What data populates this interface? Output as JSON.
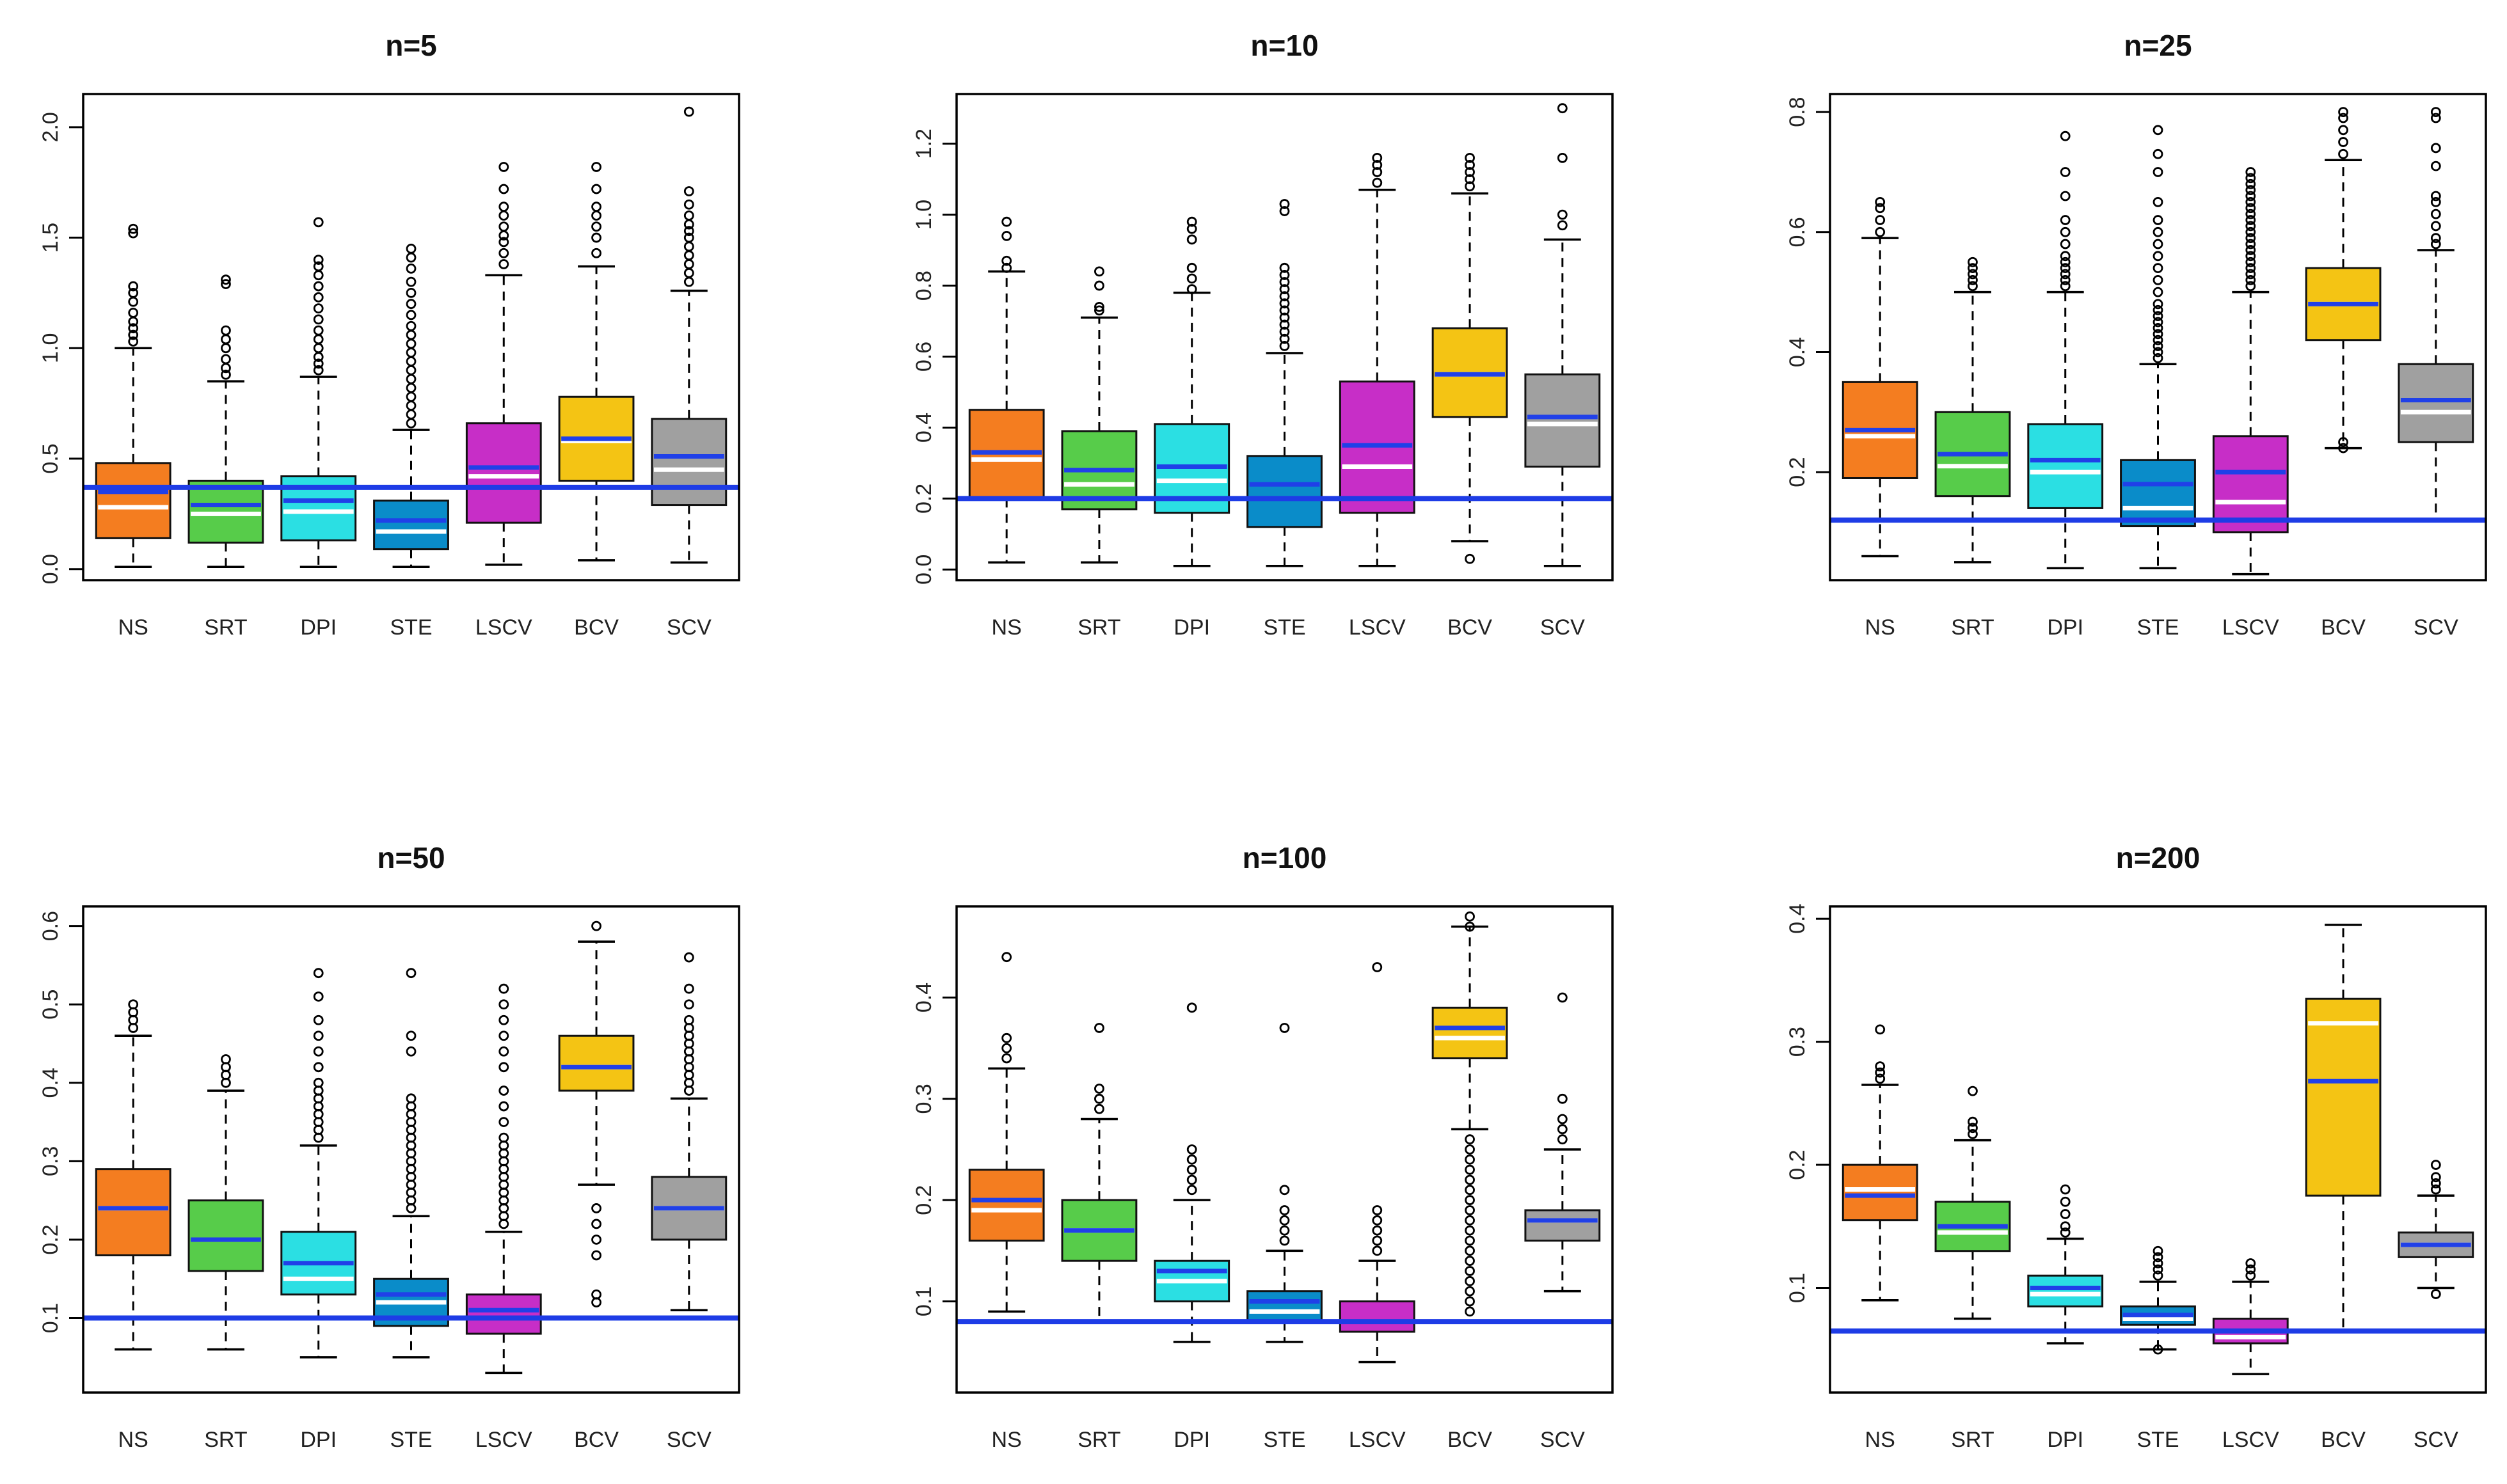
{
  "chart_data": [
    {
      "type": "boxplot",
      "title": "n=5",
      "categories": [
        "NS",
        "SRT",
        "DPI",
        "STE",
        "LSCV",
        "BCV",
        "SCV"
      ],
      "colors": [
        "#F47D20",
        "#57CC4A",
        "#2BDFE3",
        "#0A8CC9",
        "#C72EC7",
        "#F4C414",
        "#A0A0A0"
      ],
      "ylim": [
        -0.05,
        2.15
      ],
      "yticks": [
        0.0,
        0.5,
        1.0,
        1.5,
        2.0
      ],
      "ytick_labels": [
        "0.0",
        "0.5",
        "1.0",
        "1.5",
        "2.0"
      ],
      "reference_line": 0.37,
      "boxes": [
        {
          "whisker_low": 0.01,
          "q1": 0.14,
          "median": 0.28,
          "mean": 0.35,
          "q3": 0.48,
          "whisker_high": 1.0,
          "outliers": [
            1.03,
            1.06,
            1.09,
            1.12,
            1.16,
            1.21,
            1.25,
            1.28,
            1.52,
            1.54
          ]
        },
        {
          "whisker_low": 0.01,
          "q1": 0.12,
          "median": 0.25,
          "mean": 0.29,
          "q3": 0.4,
          "whisker_high": 0.85,
          "outliers": [
            0.88,
            0.91,
            0.95,
            1.0,
            1.04,
            1.08,
            1.29,
            1.31
          ]
        },
        {
          "whisker_low": 0.01,
          "q1": 0.13,
          "median": 0.26,
          "mean": 0.31,
          "q3": 0.42,
          "whisker_high": 0.87,
          "outliers": [
            0.9,
            0.93,
            0.96,
            1.0,
            1.04,
            1.08,
            1.13,
            1.18,
            1.23,
            1.28,
            1.33,
            1.37,
            1.4,
            1.57
          ]
        },
        {
          "whisker_low": 0.01,
          "q1": 0.09,
          "median": 0.17,
          "mean": 0.22,
          "q3": 0.31,
          "whisker_high": 0.63,
          "outliers": [
            0.66,
            0.7,
            0.74,
            0.78,
            0.82,
            0.86,
            0.9,
            0.94,
            0.98,
            1.02,
            1.06,
            1.1,
            1.15,
            1.2,
            1.25,
            1.3,
            1.36,
            1.41,
            1.45
          ]
        },
        {
          "whisker_low": 0.02,
          "q1": 0.21,
          "median": 0.42,
          "mean": 0.46,
          "q3": 0.66,
          "whisker_high": 1.33,
          "outliers": [
            1.38,
            1.43,
            1.48,
            1.51,
            1.55,
            1.6,
            1.64,
            1.72,
            1.82
          ]
        },
        {
          "whisker_low": 0.04,
          "q1": 0.4,
          "median": 0.58,
          "mean": 0.59,
          "q3": 0.78,
          "whisker_high": 1.37,
          "outliers": [
            1.43,
            1.5,
            1.55,
            1.6,
            1.64,
            1.72,
            1.82
          ]
        },
        {
          "whisker_low": 0.03,
          "q1": 0.29,
          "median": 0.45,
          "mean": 0.51,
          "q3": 0.68,
          "whisker_high": 1.26,
          "outliers": [
            1.3,
            1.34,
            1.38,
            1.42,
            1.46,
            1.5,
            1.53,
            1.56,
            1.6,
            1.65,
            1.71,
            2.07
          ]
        }
      ]
    },
    {
      "type": "boxplot",
      "title": "n=10",
      "categories": [
        "NS",
        "SRT",
        "DPI",
        "STE",
        "LSCV",
        "BCV",
        "SCV"
      ],
      "colors": [
        "#F47D20",
        "#57CC4A",
        "#2BDFE3",
        "#0A8CC9",
        "#C72EC7",
        "#F4C414",
        "#A0A0A0"
      ],
      "ylim": [
        -0.03,
        1.34
      ],
      "yticks": [
        0.0,
        0.2,
        0.4,
        0.6,
        0.8,
        1.0,
        1.2
      ],
      "ytick_labels": [
        "0.0",
        "0.2",
        "0.4",
        "0.6",
        "0.8",
        "1.0",
        "1.2"
      ],
      "reference_line": 0.2,
      "boxes": [
        {
          "whisker_low": 0.02,
          "q1": 0.2,
          "median": 0.31,
          "mean": 0.33,
          "q3": 0.45,
          "whisker_high": 0.84,
          "outliers": [
            0.85,
            0.87,
            0.94,
            0.98
          ]
        },
        {
          "whisker_low": 0.02,
          "q1": 0.17,
          "median": 0.24,
          "mean": 0.28,
          "q3": 0.39,
          "whisker_high": 0.71,
          "outliers": [
            0.73,
            0.74,
            0.8,
            0.84
          ]
        },
        {
          "whisker_low": 0.01,
          "q1": 0.16,
          "median": 0.25,
          "mean": 0.29,
          "q3": 0.41,
          "whisker_high": 0.78,
          "outliers": [
            0.79,
            0.82,
            0.85,
            0.93,
            0.96,
            0.98
          ]
        },
        {
          "whisker_low": 0.01,
          "q1": 0.12,
          "median": 0.2,
          "mean": 0.24,
          "q3": 0.32,
          "whisker_high": 0.61,
          "outliers": [
            0.63,
            0.65,
            0.67,
            0.69,
            0.71,
            0.73,
            0.75,
            0.77,
            0.79,
            0.81,
            0.83,
            0.85,
            1.01,
            1.03
          ]
        },
        {
          "whisker_low": 0.01,
          "q1": 0.16,
          "median": 0.29,
          "mean": 0.35,
          "q3": 0.53,
          "whisker_high": 1.07,
          "outliers": [
            1.09,
            1.12,
            1.14,
            1.16
          ]
        },
        {
          "whisker_low": 0.08,
          "q1": 0.43,
          "median": 0.55,
          "mean": 0.55,
          "q3": 0.68,
          "whisker_high": 1.06,
          "outliers": [
            0.03,
            1.08,
            1.1,
            1.12,
            1.14,
            1.16
          ]
        },
        {
          "whisker_low": 0.01,
          "q1": 0.29,
          "median": 0.41,
          "mean": 0.43,
          "q3": 0.55,
          "whisker_high": 0.93,
          "outliers": [
            0.97,
            1.0,
            1.16,
            1.3
          ]
        }
      ]
    },
    {
      "type": "boxplot",
      "title": "n=25",
      "categories": [
        "NS",
        "SRT",
        "DPI",
        "STE",
        "LSCV",
        "BCV",
        "SCV"
      ],
      "colors": [
        "#F47D20",
        "#57CC4A",
        "#2BDFE3",
        "#0A8CC9",
        "#C72EC7",
        "#F4C414",
        "#A0A0A0"
      ],
      "ylim": [
        0.02,
        0.83
      ],
      "yticks": [
        0.2,
        0.4,
        0.6,
        0.8
      ],
      "ytick_labels": [
        "0.2",
        "0.4",
        "0.6",
        "0.8"
      ],
      "reference_line": 0.12,
      "boxes": [
        {
          "whisker_low": 0.06,
          "q1": 0.19,
          "median": 0.26,
          "mean": 0.27,
          "q3": 0.35,
          "whisker_high": 0.59,
          "outliers": [
            0.6,
            0.62,
            0.64,
            0.65
          ]
        },
        {
          "whisker_low": 0.05,
          "q1": 0.16,
          "median": 0.21,
          "mean": 0.23,
          "q3": 0.3,
          "whisker_high": 0.5,
          "outliers": [
            0.51,
            0.52,
            0.53,
            0.54,
            0.55
          ]
        },
        {
          "whisker_low": 0.04,
          "q1": 0.14,
          "median": 0.2,
          "mean": 0.22,
          "q3": 0.28,
          "whisker_high": 0.5,
          "outliers": [
            0.51,
            0.52,
            0.53,
            0.54,
            0.55,
            0.56,
            0.58,
            0.6,
            0.62,
            0.66,
            0.7,
            0.76
          ]
        },
        {
          "whisker_low": 0.04,
          "q1": 0.11,
          "median": 0.14,
          "mean": 0.18,
          "q3": 0.22,
          "whisker_high": 0.38,
          "outliers": [
            0.39,
            0.4,
            0.41,
            0.42,
            0.43,
            0.44,
            0.45,
            0.46,
            0.47,
            0.48,
            0.5,
            0.52,
            0.54,
            0.56,
            0.58,
            0.6,
            0.62,
            0.65,
            0.7,
            0.73,
            0.77
          ]
        },
        {
          "whisker_low": 0.03,
          "q1": 0.1,
          "median": 0.15,
          "mean": 0.2,
          "q3": 0.26,
          "whisker_high": 0.5,
          "outliers": [
            0.51,
            0.52,
            0.53,
            0.54,
            0.55,
            0.56,
            0.57,
            0.58,
            0.59,
            0.6,
            0.61,
            0.62,
            0.63,
            0.64,
            0.65,
            0.66,
            0.67,
            0.68,
            0.69,
            0.7
          ]
        },
        {
          "whisker_low": 0.24,
          "q1": 0.42,
          "median": 0.48,
          "mean": 0.48,
          "q3": 0.54,
          "whisker_high": 0.72,
          "outliers": [
            0.24,
            0.25,
            0.73,
            0.75,
            0.77,
            0.79,
            0.8
          ]
        },
        {
          "whisker_low": 0.12,
          "q1": 0.25,
          "median": 0.3,
          "mean": 0.32,
          "q3": 0.38,
          "whisker_high": 0.57,
          "outliers": [
            0.58,
            0.59,
            0.61,
            0.63,
            0.65,
            0.66,
            0.71,
            0.74,
            0.79,
            0.8
          ]
        }
      ]
    },
    {
      "type": "boxplot",
      "title": "n=50",
      "categories": [
        "NS",
        "SRT",
        "DPI",
        "STE",
        "LSCV",
        "BCV",
        "SCV"
      ],
      "colors": [
        "#F47D20",
        "#57CC4A",
        "#2BDFE3",
        "#0A8CC9",
        "#C72EC7",
        "#F4C414",
        "#A0A0A0"
      ],
      "ylim": [
        0.005,
        0.625
      ],
      "yticks": [
        0.1,
        0.2,
        0.3,
        0.4,
        0.5,
        0.6
      ],
      "ytick_labels": [
        "0.1",
        "0.2",
        "0.3",
        "0.4",
        "0.5",
        "0.6"
      ],
      "reference_line": 0.1,
      "boxes": [
        {
          "whisker_low": 0.06,
          "q1": 0.18,
          "median": 0.24,
          "mean": 0.24,
          "q3": 0.29,
          "whisker_high": 0.46,
          "outliers": [
            0.47,
            0.48,
            0.49,
            0.5
          ]
        },
        {
          "whisker_low": 0.06,
          "q1": 0.16,
          "median": 0.2,
          "mean": 0.2,
          "q3": 0.25,
          "whisker_high": 0.39,
          "outliers": [
            0.4,
            0.41,
            0.42,
            0.43
          ]
        },
        {
          "whisker_low": 0.05,
          "q1": 0.13,
          "median": 0.15,
          "mean": 0.17,
          "q3": 0.21,
          "whisker_high": 0.32,
          "outliers": [
            0.33,
            0.34,
            0.35,
            0.36,
            0.37,
            0.38,
            0.39,
            0.4,
            0.42,
            0.44,
            0.46,
            0.48,
            0.51,
            0.54
          ]
        },
        {
          "whisker_low": 0.05,
          "q1": 0.09,
          "median": 0.12,
          "mean": 0.13,
          "q3": 0.15,
          "whisker_high": 0.23,
          "outliers": [
            0.24,
            0.25,
            0.26,
            0.27,
            0.28,
            0.29,
            0.3,
            0.31,
            0.32,
            0.33,
            0.34,
            0.35,
            0.36,
            0.37,
            0.38,
            0.44,
            0.46,
            0.54
          ]
        },
        {
          "whisker_low": 0.03,
          "q1": 0.08,
          "median": 0.1,
          "mean": 0.11,
          "q3": 0.13,
          "whisker_high": 0.21,
          "outliers": [
            0.22,
            0.23,
            0.24,
            0.25,
            0.26,
            0.27,
            0.28,
            0.29,
            0.3,
            0.31,
            0.32,
            0.33,
            0.35,
            0.37,
            0.39,
            0.42,
            0.44,
            0.46,
            0.48,
            0.5,
            0.52
          ]
        },
        {
          "whisker_low": 0.27,
          "q1": 0.39,
          "median": 0.42,
          "mean": 0.42,
          "q3": 0.46,
          "whisker_high": 0.58,
          "outliers": [
            0.12,
            0.13,
            0.18,
            0.2,
            0.22,
            0.24,
            0.6
          ]
        },
        {
          "whisker_low": 0.11,
          "q1": 0.2,
          "median": 0.24,
          "mean": 0.24,
          "q3": 0.28,
          "whisker_high": 0.38,
          "outliers": [
            0.39,
            0.4,
            0.41,
            0.42,
            0.43,
            0.44,
            0.45,
            0.46,
            0.47,
            0.48,
            0.5,
            0.52,
            0.56
          ]
        }
      ]
    },
    {
      "type": "boxplot",
      "title": "n=100",
      "categories": [
        "NS",
        "SRT",
        "DPI",
        "STE",
        "LSCV",
        "BCV",
        "SCV"
      ],
      "colors": [
        "#F47D20",
        "#57CC4A",
        "#2BDFE3",
        "#0A8CC9",
        "#C72EC7",
        "#F4C414",
        "#A0A0A0"
      ],
      "ylim": [
        0.01,
        0.49
      ],
      "yticks": [
        0.1,
        0.2,
        0.3,
        0.4
      ],
      "ytick_labels": [
        "0.1",
        "0.2",
        "0.3",
        "0.4"
      ],
      "reference_line": 0.08,
      "boxes": [
        {
          "whisker_low": 0.09,
          "q1": 0.16,
          "median": 0.19,
          "mean": 0.2,
          "q3": 0.23,
          "whisker_high": 0.33,
          "outliers": [
            0.34,
            0.35,
            0.36,
            0.44
          ]
        },
        {
          "whisker_low": 0.08,
          "q1": 0.14,
          "median": 0.17,
          "mean": 0.17,
          "q3": 0.2,
          "whisker_high": 0.28,
          "outliers": [
            0.29,
            0.3,
            0.31,
            0.37
          ]
        },
        {
          "whisker_low": 0.06,
          "q1": 0.1,
          "median": 0.12,
          "mean": 0.13,
          "q3": 0.14,
          "whisker_high": 0.2,
          "outliers": [
            0.21,
            0.22,
            0.23,
            0.24,
            0.25,
            0.39
          ]
        },
        {
          "whisker_low": 0.06,
          "q1": 0.08,
          "median": 0.09,
          "mean": 0.1,
          "q3": 0.11,
          "whisker_high": 0.15,
          "outliers": [
            0.16,
            0.17,
            0.18,
            0.19,
            0.21,
            0.37
          ]
        },
        {
          "whisker_low": 0.04,
          "q1": 0.07,
          "median": 0.08,
          "mean": 0.08,
          "q3": 0.1,
          "whisker_high": 0.14,
          "outliers": [
            0.15,
            0.16,
            0.17,
            0.18,
            0.19,
            0.43
          ]
        },
        {
          "whisker_low": 0.27,
          "q1": 0.34,
          "median": 0.36,
          "mean": 0.37,
          "q3": 0.39,
          "whisker_high": 0.47,
          "outliers": [
            0.09,
            0.1,
            0.11,
            0.12,
            0.13,
            0.14,
            0.15,
            0.16,
            0.17,
            0.18,
            0.19,
            0.2,
            0.21,
            0.22,
            0.23,
            0.24,
            0.25,
            0.26,
            0.47,
            0.48
          ]
        },
        {
          "whisker_low": 0.11,
          "q1": 0.16,
          "median": 0.18,
          "mean": 0.18,
          "q3": 0.19,
          "whisker_high": 0.25,
          "outliers": [
            0.26,
            0.27,
            0.28,
            0.3,
            0.4
          ]
        }
      ]
    },
    {
      "type": "boxplot",
      "title": "n=200",
      "categories": [
        "NS",
        "SRT",
        "DPI",
        "STE",
        "LSCV",
        "BCV",
        "SCV"
      ],
      "colors": [
        "#F47D20",
        "#57CC4A",
        "#2BDFE3",
        "#0A8CC9",
        "#C72EC7",
        "#F4C414",
        "#A0A0A0"
      ],
      "ylim": [
        0.015,
        0.41
      ],
      "yticks": [
        0.1,
        0.2,
        0.3,
        0.4
      ],
      "ytick_labels": [
        "0.1",
        "0.2",
        "0.3",
        "0.4"
      ],
      "reference_line": 0.065,
      "boxes": [
        {
          "whisker_low": 0.09,
          "q1": 0.155,
          "median": 0.18,
          "mean": 0.175,
          "q3": 0.2,
          "whisker_high": 0.265,
          "outliers": [
            0.27,
            0.275,
            0.28,
            0.31
          ]
        },
        {
          "whisker_low": 0.075,
          "q1": 0.13,
          "median": 0.145,
          "mean": 0.15,
          "q3": 0.17,
          "whisker_high": 0.22,
          "outliers": [
            0.225,
            0.23,
            0.235,
            0.26
          ]
        },
        {
          "whisker_low": 0.055,
          "q1": 0.085,
          "median": 0.095,
          "mean": 0.1,
          "q3": 0.11,
          "whisker_high": 0.14,
          "outliers": [
            0.145,
            0.15,
            0.16,
            0.17,
            0.18
          ]
        },
        {
          "whisker_low": 0.05,
          "q1": 0.07,
          "median": 0.075,
          "mean": 0.078,
          "q3": 0.085,
          "whisker_high": 0.105,
          "outliers": [
            0.11,
            0.115,
            0.12,
            0.125,
            0.13,
            0.05
          ]
        },
        {
          "whisker_low": 0.03,
          "q1": 0.055,
          "median": 0.06,
          "mean": 0.065,
          "q3": 0.075,
          "whisker_high": 0.105,
          "outliers": [
            0.11,
            0.115,
            0.12
          ]
        },
        {
          "whisker_low": 0.065,
          "q1": 0.175,
          "median": 0.315,
          "mean": 0.268,
          "q3": 0.335,
          "whisker_high": 0.395,
          "outliers": []
        },
        {
          "whisker_low": 0.1,
          "q1": 0.125,
          "median": 0.135,
          "mean": 0.135,
          "q3": 0.145,
          "whisker_high": 0.175,
          "outliers": [
            0.18,
            0.185,
            0.19,
            0.2,
            0.095
          ]
        }
      ]
    }
  ],
  "style": {
    "median_color": "#FFFFFF",
    "mean_color": "#2040E8",
    "reference_color": "#1E3CE6",
    "frame_color": "#000000"
  }
}
